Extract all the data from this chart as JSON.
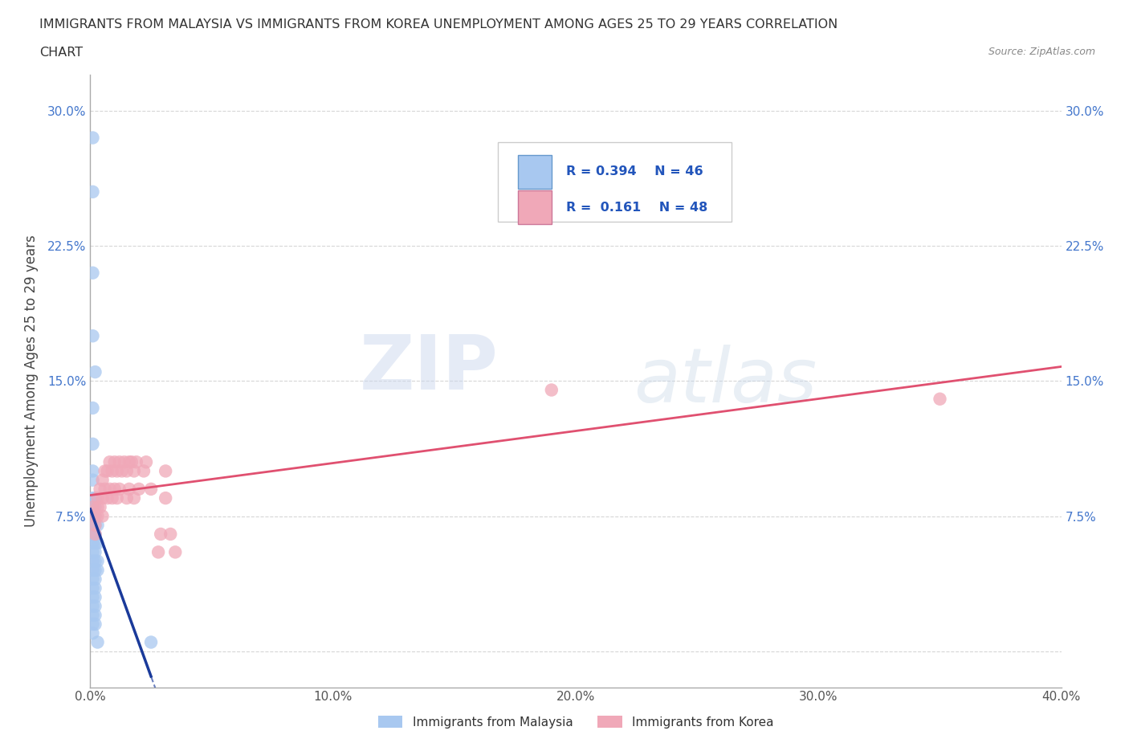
{
  "title_line1": "IMMIGRANTS FROM MALAYSIA VS IMMIGRANTS FROM KOREA UNEMPLOYMENT AMONG AGES 25 TO 29 YEARS CORRELATION",
  "title_line2": "CHART",
  "source": "Source: ZipAtlas.com",
  "ylabel": "Unemployment Among Ages 25 to 29 years",
  "xlim": [
    0.0,
    0.4
  ],
  "ylim": [
    -0.02,
    0.32
  ],
  "x_ticks": [
    0.0,
    0.1,
    0.2,
    0.3,
    0.4
  ],
  "x_tick_labels": [
    "0.0%",
    "10.0%",
    "20.0%",
    "30.0%",
    "40.0%"
  ],
  "y_ticks": [
    0.0,
    0.075,
    0.15,
    0.225,
    0.3
  ],
  "y_tick_labels": [
    "",
    "7.5%",
    "15.0%",
    "22.5%",
    "30.0%"
  ],
  "malaysia_R": 0.394,
  "malaysia_N": 46,
  "korea_R": 0.161,
  "korea_N": 48,
  "malaysia_color": "#a8c8f0",
  "korea_color": "#f0a8b8",
  "malaysia_line_color": "#1a3a9a",
  "korea_line_color": "#e05070",
  "malaysia_scatter": [
    [
      0.001,
      0.285
    ],
    [
      0.001,
      0.255
    ],
    [
      0.001,
      0.21
    ],
    [
      0.001,
      0.175
    ],
    [
      0.002,
      0.155
    ],
    [
      0.001,
      0.135
    ],
    [
      0.001,
      0.115
    ],
    [
      0.001,
      0.1
    ],
    [
      0.001,
      0.095
    ],
    [
      0.001,
      0.085
    ],
    [
      0.002,
      0.085
    ],
    [
      0.001,
      0.08
    ],
    [
      0.002,
      0.08
    ],
    [
      0.001,
      0.075
    ],
    [
      0.002,
      0.075
    ],
    [
      0.001,
      0.07
    ],
    [
      0.002,
      0.07
    ],
    [
      0.003,
      0.07
    ],
    [
      0.001,
      0.065
    ],
    [
      0.002,
      0.065
    ],
    [
      0.001,
      0.06
    ],
    [
      0.002,
      0.06
    ],
    [
      0.003,
      0.06
    ],
    [
      0.001,
      0.055
    ],
    [
      0.002,
      0.055
    ],
    [
      0.001,
      0.05
    ],
    [
      0.002,
      0.05
    ],
    [
      0.003,
      0.05
    ],
    [
      0.001,
      0.045
    ],
    [
      0.002,
      0.045
    ],
    [
      0.003,
      0.045
    ],
    [
      0.001,
      0.04
    ],
    [
      0.002,
      0.04
    ],
    [
      0.001,
      0.035
    ],
    [
      0.002,
      0.035
    ],
    [
      0.001,
      0.03
    ],
    [
      0.002,
      0.03
    ],
    [
      0.001,
      0.025
    ],
    [
      0.002,
      0.025
    ],
    [
      0.001,
      0.02
    ],
    [
      0.002,
      0.02
    ],
    [
      0.001,
      0.015
    ],
    [
      0.002,
      0.015
    ],
    [
      0.001,
      0.01
    ],
    [
      0.003,
      0.005
    ],
    [
      0.025,
      0.005
    ]
  ],
  "korea_scatter": [
    [
      0.001,
      0.08
    ],
    [
      0.002,
      0.075
    ],
    [
      0.002,
      0.07
    ],
    [
      0.002,
      0.065
    ],
    [
      0.003,
      0.085
    ],
    [
      0.003,
      0.08
    ],
    [
      0.003,
      0.075
    ],
    [
      0.004,
      0.09
    ],
    [
      0.004,
      0.08
    ],
    [
      0.005,
      0.095
    ],
    [
      0.005,
      0.085
    ],
    [
      0.005,
      0.075
    ],
    [
      0.006,
      0.1
    ],
    [
      0.006,
      0.09
    ],
    [
      0.007,
      0.1
    ],
    [
      0.007,
      0.085
    ],
    [
      0.008,
      0.105
    ],
    [
      0.008,
      0.09
    ],
    [
      0.009,
      0.1
    ],
    [
      0.009,
      0.085
    ],
    [
      0.01,
      0.105
    ],
    [
      0.01,
      0.09
    ],
    [
      0.011,
      0.1
    ],
    [
      0.011,
      0.085
    ],
    [
      0.012,
      0.105
    ],
    [
      0.012,
      0.09
    ],
    [
      0.013,
      0.1
    ],
    [
      0.014,
      0.105
    ],
    [
      0.015,
      0.1
    ],
    [
      0.015,
      0.085
    ],
    [
      0.016,
      0.105
    ],
    [
      0.016,
      0.09
    ],
    [
      0.017,
      0.105
    ],
    [
      0.018,
      0.1
    ],
    [
      0.018,
      0.085
    ],
    [
      0.019,
      0.105
    ],
    [
      0.02,
      0.09
    ],
    [
      0.022,
      0.1
    ],
    [
      0.023,
      0.105
    ],
    [
      0.025,
      0.09
    ],
    [
      0.028,
      0.055
    ],
    [
      0.029,
      0.065
    ],
    [
      0.031,
      0.1
    ],
    [
      0.031,
      0.085
    ],
    [
      0.033,
      0.065
    ],
    [
      0.035,
      0.055
    ],
    [
      0.19,
      0.145
    ],
    [
      0.35,
      0.14
    ]
  ],
  "watermark_zip": "ZIP",
  "watermark_atlas": "atlas",
  "background_color": "#ffffff",
  "grid_color": "#cccccc"
}
